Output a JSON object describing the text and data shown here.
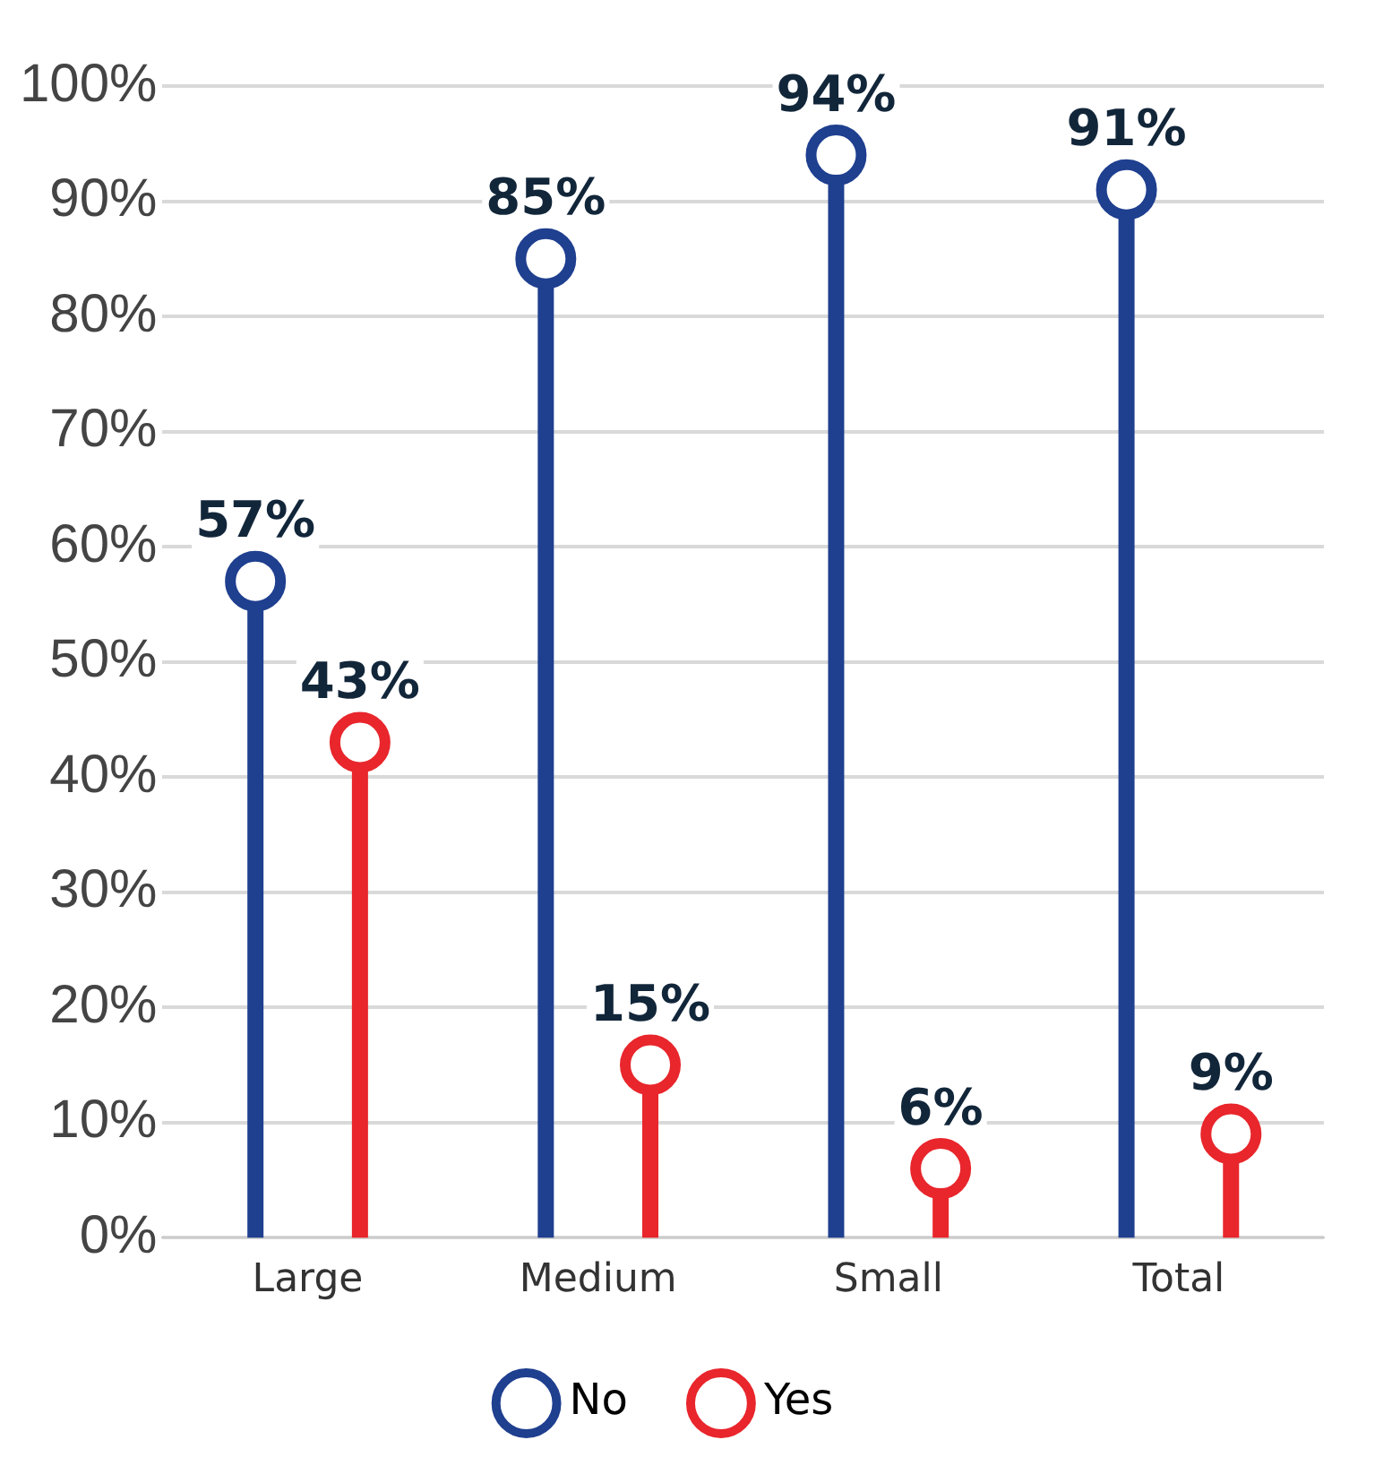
{
  "chart_data": {
    "type": "lollipop",
    "categories": [
      "Large",
      "Medium",
      "Small",
      "Total"
    ],
    "series": [
      {
        "name": "No",
        "color": "#1f3f8f",
        "values": [
          57,
          85,
          94,
          91
        ],
        "value_labels": [
          "57%",
          "85%",
          "94%",
          "91%"
        ]
      },
      {
        "name": "Yes",
        "color": "#e8262c",
        "values": [
          43,
          15,
          6,
          9
        ],
        "value_labels": [
          "43%",
          "15%",
          "6%",
          "9%"
        ]
      }
    ],
    "ylim": [
      0,
      100
    ],
    "yticks": [
      {
        "value": 0,
        "label": "0%"
      },
      {
        "value": 10,
        "label": "10%"
      },
      {
        "value": 20,
        "label": "20%"
      },
      {
        "value": 30,
        "label": "30%"
      },
      {
        "value": 40,
        "label": "40%"
      },
      {
        "value": 50,
        "label": "50%"
      },
      {
        "value": 60,
        "label": "60%"
      },
      {
        "value": 70,
        "label": "70%"
      },
      {
        "value": 80,
        "label": "80%"
      },
      {
        "value": 90,
        "label": "90%"
      },
      {
        "value": 100,
        "label": "100%"
      }
    ],
    "grid": "y",
    "legend": "bottom",
    "marker": "circle"
  }
}
